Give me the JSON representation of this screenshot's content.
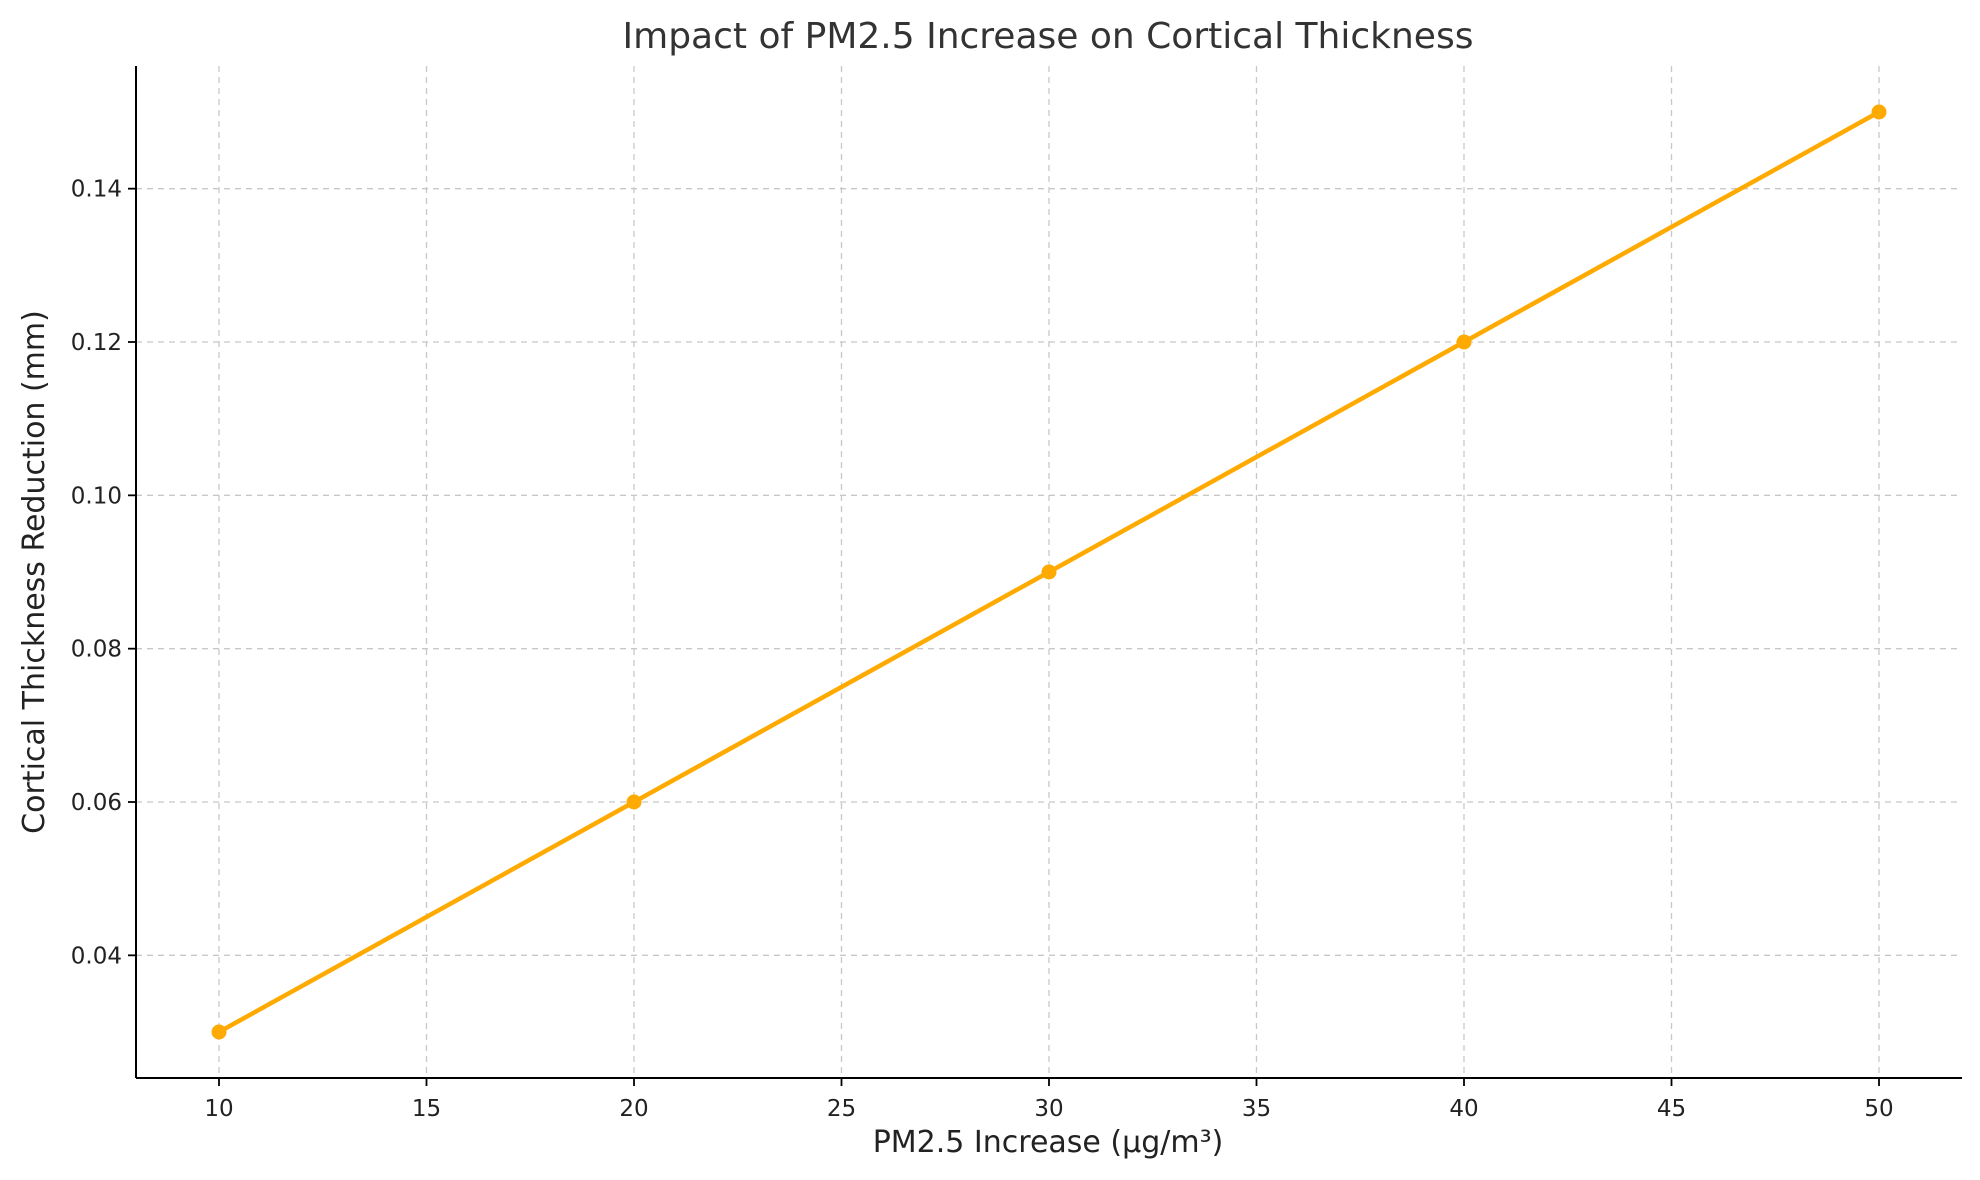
{
  "chart_data": {
    "type": "line",
    "title": "Impact of PM2.5 Increase on Cortical Thickness",
    "xlabel": "PM2.5 Increase (µg/m³)",
    "ylabel": "Cortical Thickness Reduction (mm)",
    "x": [
      10,
      20,
      30,
      40,
      50
    ],
    "series": [
      {
        "values": [
          0.03,
          0.06,
          0.09,
          0.12,
          0.15
        ],
        "color": "#FFAA00",
        "marker": "circle"
      }
    ],
    "xlim": [
      8,
      52
    ],
    "ylim": [
      0.024,
      0.156
    ],
    "xticks": [
      10,
      15,
      20,
      25,
      30,
      35,
      40,
      45,
      50
    ],
    "xtick_labels": [
      "10",
      "15",
      "20",
      "25",
      "30",
      "35",
      "40",
      "45",
      "50"
    ],
    "yticks": [
      0.04,
      0.06,
      0.08,
      0.1,
      0.12,
      0.14
    ],
    "ytick_labels": [
      "0.04",
      "0.06",
      "0.08",
      "0.10",
      "0.12",
      "0.14"
    ],
    "grid": true,
    "grid_style": "dashed",
    "legend": "none"
  }
}
